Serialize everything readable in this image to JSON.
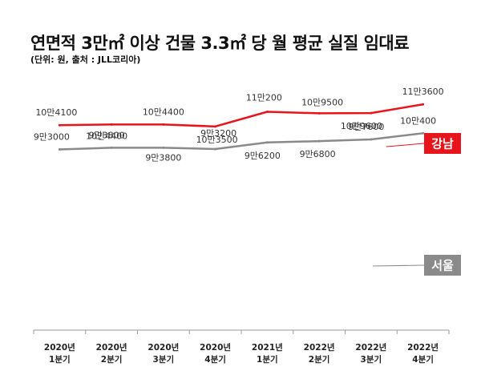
{
  "chart_data": {
    "type": "line",
    "title": "연면적 3만㎡ 이상 건물 3.3㎡ 당 월 평균 실질 임대료",
    "subtitle": "(단위: 원, 출처 : JLL코리아)",
    "categories": [
      "2020년\n1분기",
      "2020년\n2분기",
      "2020년\n3분기",
      "2020년\n4분기",
      "2021년\n1분기",
      "2022년\n2분기",
      "2022년\n3분기",
      "2022년\n4분기"
    ],
    "series": [
      {
        "name": "강남",
        "color": "#e8141b",
        "values": [
          104100,
          104400,
          104400,
          103500,
          110200,
          109500,
          109600,
          113600
        ],
        "labels": [
          "10만4100",
          "10만4400",
          "10만4400",
          "10만3500",
          "11만200",
          "10만9500",
          "10만9600",
          "11만3600"
        ]
      },
      {
        "name": "서울",
        "color": "#8a8a8a",
        "values": [
          93000,
          93800,
          93800,
          93200,
          96200,
          96800,
          97600,
          100400
        ],
        "labels": [
          "9만3000",
          "9만3800",
          "9만3800",
          "9만3200",
          "9만6200",
          "9만6800",
          "9만7600",
          "10만400"
        ]
      }
    ]
  }
}
